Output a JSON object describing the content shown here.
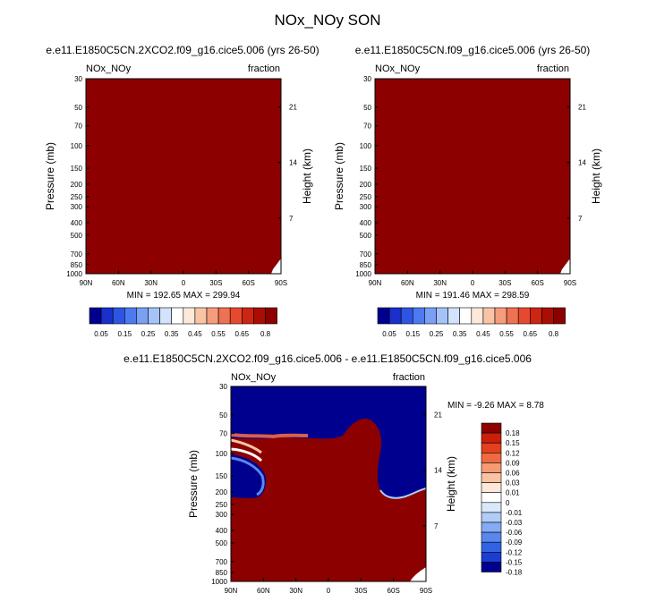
{
  "figure": {
    "title": "NOx_NOy SON"
  },
  "chart_data": [
    {
      "type": "heatmap",
      "panel": "top-left",
      "title": "e.e11.E1850C5CN.2XCO2.f09_g16.cice5.006 (yrs 26-50)",
      "left_label": "NOx_NOy",
      "right_label": "fraction",
      "xlabel": "",
      "ylabel": "Pressure (mb)",
      "ylabel_right": "Height (km)",
      "x_ticks": [
        "90N",
        "60N",
        "30N",
        "0",
        "30S",
        "60S",
        "90S"
      ],
      "y_ticks": [
        "30",
        "50",
        "70",
        "100",
        "150",
        "200",
        "250",
        "300",
        "400",
        "500",
        "700",
        "850",
        "1000"
      ],
      "height_ticks": [
        "21",
        "14",
        "7"
      ],
      "ylim": [
        30,
        1000
      ],
      "stats": "MIN = 192.65   MAX = 299.94",
      "field": "uniformly above 0.8 (all darkest red) except white topography at surface near 90S"
    },
    {
      "type": "heatmap",
      "panel": "top-right",
      "title": "e.e11.E1850C5CN.f09_g16.cice5.006 (yrs 26-50)",
      "left_label": "NOx_NOy",
      "right_label": "fraction",
      "xlabel": "",
      "ylabel": "Pressure (mb)",
      "ylabel_right": "Height (km)",
      "x_ticks": [
        "90N",
        "60N",
        "30N",
        "0",
        "30S",
        "60S",
        "90S"
      ],
      "y_ticks": [
        "30",
        "50",
        "70",
        "100",
        "150",
        "200",
        "250",
        "300",
        "400",
        "500",
        "700",
        "850",
        "1000"
      ],
      "height_ticks": [
        "21",
        "14",
        "7"
      ],
      "ylim": [
        30,
        1000
      ],
      "stats": "MIN = 191.46   MAX = 298.59",
      "field": "uniformly above 0.8 (all darkest red) except white topography at surface near 90S"
    },
    {
      "type": "heatmap",
      "panel": "bottom-difference",
      "title": "e.e11.E1850C5CN.2XCO2.f09_g16.cice5.006 - e.e11.E1850C5CN.f09_g16.cice5.006",
      "left_label": "NOx_NOy",
      "right_label": "fraction",
      "xlabel": "",
      "ylabel": "Pressure (mb)",
      "ylabel_right": "Height (km)",
      "x_ticks": [
        "90N",
        "60N",
        "30N",
        "0",
        "30S",
        "60S",
        "90S"
      ],
      "y_ticks": [
        "30",
        "50",
        "70",
        "100",
        "150",
        "200",
        "250",
        "300",
        "400",
        "500",
        "700",
        "850",
        "1000"
      ],
      "height_ticks": [
        "21",
        "14",
        "7"
      ],
      "ylim": [
        30,
        1000
      ],
      "stats": "MIN =  -9.26   MAX =   8.78",
      "field": "positive (>0.18) below a boundary at ~75-90 mb in tropics rising to ~60 mb near 35S; negative (<-0.18) above and in the 100-200 mb NH high-latitude region"
    }
  ],
  "colorbars": {
    "top": {
      "colors": [
        "#00008f",
        "#1a2fcb",
        "#2d55e3",
        "#4d7af0",
        "#7aa0f5",
        "#a6c3f9",
        "#d3e3fc",
        "#ffffff",
        "#fde9d9",
        "#f9c4a6",
        "#f59c7d",
        "#ef7153",
        "#e64a2e",
        "#cc2512",
        "#aa0d04",
        "#8c0000"
      ],
      "labels": [
        "0.05",
        "0.15",
        "0.25",
        "0.35",
        "0.45",
        "0.55",
        "0.65",
        "0.8"
      ]
    },
    "diff": {
      "colors": [
        "#8c0000",
        "#cc1e0c",
        "#e2401f",
        "#ef6a41",
        "#f59a72",
        "#f9c3a2",
        "#fde8d8",
        "#ffffff",
        "#d9e9fb",
        "#b0cdf8",
        "#84acf4",
        "#5888ee",
        "#3164e4",
        "#1a3ed0",
        "#00008f"
      ],
      "labels": [
        "0.18",
        "0.15",
        "0.12",
        "0.09",
        "0.06",
        "0.03",
        "0.01",
        "0",
        "-0.01",
        "-0.03",
        "-0.06",
        "-0.09",
        "-0.12",
        "-0.15",
        "-0.18"
      ]
    }
  }
}
